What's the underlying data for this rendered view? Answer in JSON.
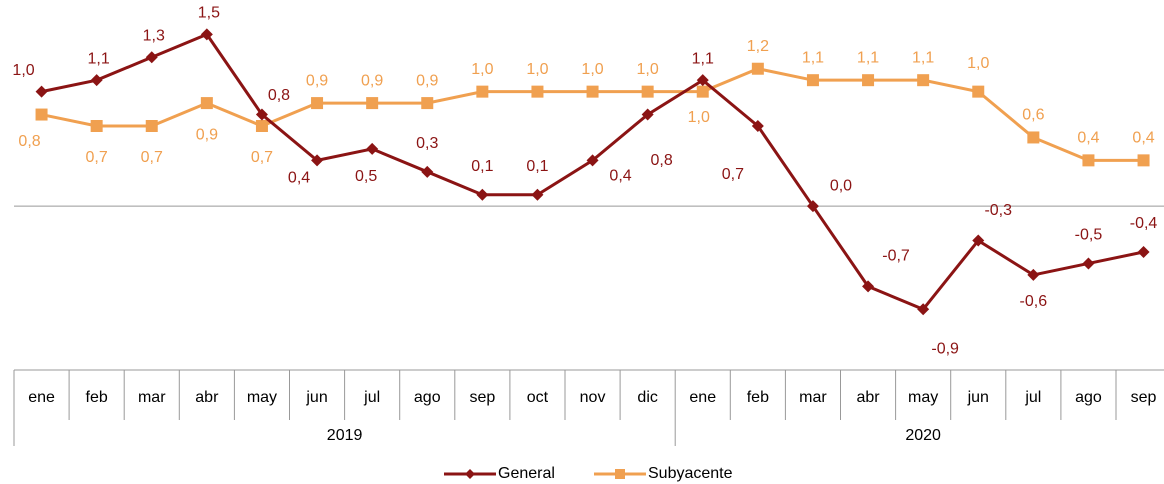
{
  "chart_data": {
    "type": "line",
    "categories": [
      "ene",
      "feb",
      "mar",
      "abr",
      "may",
      "jun",
      "jul",
      "ago",
      "sep",
      "oct",
      "nov",
      "dic",
      "ene",
      "feb",
      "mar",
      "abr",
      "may",
      "jun",
      "jul",
      "ago",
      "sep"
    ],
    "x_groups": [
      "2019",
      "2020"
    ],
    "ylim": [
      -1.5,
      1.8
    ],
    "legend": "bottom",
    "series": [
      {
        "name": "General",
        "color": "#8b1414",
        "values": [
          1.0,
          1.1,
          1.3,
          1.5,
          0.8,
          0.4,
          0.5,
          0.3,
          0.1,
          0.1,
          0.4,
          0.8,
          1.1,
          0.7,
          0.0,
          -0.7,
          -0.9,
          -0.3,
          -0.6,
          -0.5,
          -0.4
        ],
        "value_labels": [
          "1,0",
          "1,1",
          "1,3",
          "1,5",
          "0,8",
          "0,4",
          "0,5",
          "0,3",
          "0,1",
          "0,1",
          "0,4",
          "0,8",
          "1,1",
          "0,7",
          "0,0",
          "-0,7",
          "-0,9",
          "-0,3",
          "-0,6",
          "-0,5",
          "-0,4"
        ]
      },
      {
        "name": "Subyacente",
        "color": "#f0a050",
        "values": [
          0.8,
          0.7,
          0.7,
          0.9,
          0.7,
          0.9,
          0.9,
          0.9,
          1.0,
          1.0,
          1.0,
          1.0,
          1.0,
          1.2,
          1.1,
          1.1,
          1.1,
          1.0,
          0.6,
          0.4,
          0.4
        ],
        "value_labels": [
          "0,8",
          "0,7",
          "0,7",
          "0,9",
          "0,7",
          "0,9",
          "0,9",
          "0,9",
          "1,0",
          "1,0",
          "1,0",
          "1,0",
          "1,0",
          "1,2",
          "1,1",
          "1,1",
          "1,1",
          "1,0",
          "0,6",
          "0,4",
          "0,4"
        ]
      }
    ]
  }
}
